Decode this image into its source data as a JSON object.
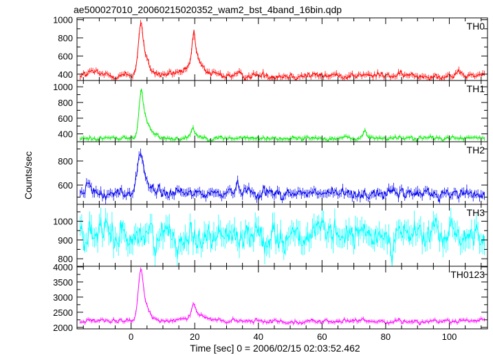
{
  "chart_data": {
    "type": "line",
    "title": "ae500027010_20060215020352_wam2_bst_4band_16bin.qdp",
    "xlabel": "Time [sec] 0 = 2006/02/15 02:03:52.462",
    "ylabel": "Counts/sec",
    "xlim": [
      -17,
      112
    ],
    "xticks": [
      0,
      20,
      40,
      60,
      80,
      100
    ],
    "xtick_labels": [
      "0",
      "20",
      "40",
      "60",
      "80",
      "100"
    ],
    "grid": false,
    "panels": [
      {
        "name": "TH0",
        "color": "#ff0000",
        "ylim": [
          330,
          1020
        ],
        "yticks": [
          400,
          600,
          800,
          1000
        ],
        "ytick_labels": [
          "400",
          "600",
          "800",
          "1000"
        ],
        "series": {
          "base": 385,
          "noise": 30,
          "peaks": [
            {
              "t": 3.2,
              "amp": 600,
              "rise": 0.9,
              "decay": 1.4
            },
            {
              "t": 19.8,
              "amp": 400,
              "rise": 0.7,
              "decay": 1.2
            },
            {
              "t": -12,
              "amp": 40,
              "rise": 1.5,
              "decay": 2
            }
          ],
          "bump": {
            "t": 19,
            "amp": 60,
            "w": 6
          }
        }
      },
      {
        "name": "TH1",
        "color": "#00ee00",
        "ylim": [
          300,
          1080
        ],
        "yticks": [
          400,
          600,
          800,
          1000
        ],
        "ytick_labels": [
          "400",
          "600",
          "800",
          "1000"
        ],
        "series": {
          "base": 345,
          "noise": 22,
          "peaks": [
            {
              "t": 3.3,
              "amp": 620,
              "rise": 0.8,
              "decay": 1.6
            },
            {
              "t": 19.5,
              "amp": 130,
              "rise": 0.8,
              "decay": 1.2
            },
            {
              "t": 73.5,
              "amp": 90,
              "rise": 0.5,
              "decay": 0.8
            }
          ],
          "bump": {
            "t": 0,
            "amp": 0,
            "w": 1
          }
        }
      },
      {
        "name": "TH2",
        "color": "#0000ee",
        "ylim": [
          440,
          960
        ],
        "yticks": [
          600,
          800
        ],
        "ytick_labels": [
          "600",
          "800"
        ],
        "series": {
          "base": 530,
          "noise": 35,
          "peaks": [
            {
              "t": 3.0,
              "amp": 360,
              "rise": 1.0,
              "decay": 1.6
            },
            {
              "t": -13,
              "amp": 60,
              "rise": 1.0,
              "decay": 1.5
            },
            {
              "t": 34,
              "amp": 50,
              "rise": 2.0,
              "decay": 4.0
            }
          ],
          "bump": {
            "t": 0,
            "amp": 0,
            "w": 1
          }
        }
      },
      {
        "name": "TH3",
        "color": "#00ffff",
        "ylim": [
          760,
          1090
        ],
        "yticks": [
          800,
          900,
          1000
        ],
        "ytick_labels": [
          "800",
          "900",
          "1000"
        ],
        "series": {
          "base": 925,
          "noise": 60,
          "peaks": [],
          "bump": {
            "t": 0,
            "amp": 0,
            "w": 1
          }
        }
      },
      {
        "name": "TH0123",
        "color": "#ff00ff",
        "ylim": [
          1950,
          4020
        ],
        "yticks": [
          2000,
          2500,
          3000,
          3500,
          4000
        ],
        "ytick_labels": [
          "2000",
          "2500",
          "3000",
          "3500",
          "4000"
        ],
        "series": {
          "base": 2200,
          "noise": 55,
          "peaks": [
            {
              "t": 3.2,
              "amp": 1750,
              "rise": 0.9,
              "decay": 1.5
            },
            {
              "t": 19.8,
              "amp": 500,
              "rise": 0.7,
              "decay": 1.2
            }
          ],
          "bump": {
            "t": 19,
            "amp": 120,
            "w": 6
          }
        }
      }
    ]
  }
}
